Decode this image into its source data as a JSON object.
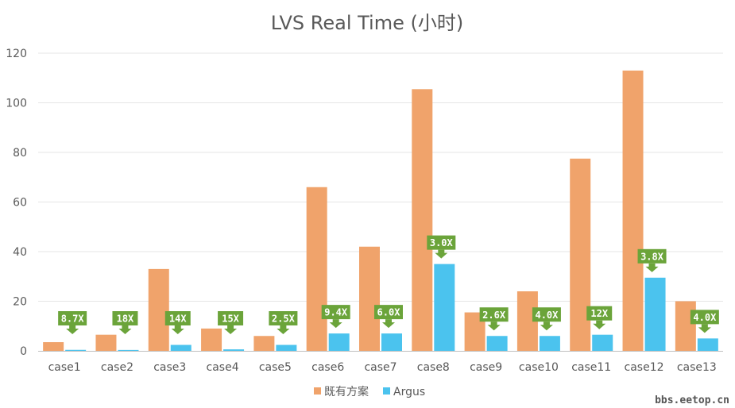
{
  "chart_data": {
    "type": "bar",
    "title": "LVS Real Time (小时)",
    "categories": [
      "case1",
      "case2",
      "case3",
      "case4",
      "case5",
      "case6",
      "case7",
      "case8",
      "case9",
      "case10",
      "case11",
      "case12",
      "case13"
    ],
    "series": [
      {
        "name": "既有方案",
        "color": "#F0A36B",
        "values": [
          3.5,
          6.5,
          33,
          9,
          6,
          66,
          42,
          105.5,
          15.5,
          24,
          77.5,
          113,
          20
        ]
      },
      {
        "name": "Argus",
        "color": "#4BC3EE",
        "values": [
          0.4,
          0.36,
          2.4,
          0.6,
          2.4,
          7,
          7,
          35,
          6,
          6,
          6.5,
          29.5,
          5
        ]
      }
    ],
    "annotations": [
      "8.7X",
      "18X",
      "14X",
      "15X",
      "2.5X",
      "9.4X",
      "6.0X",
      "3.0X",
      "2.6X",
      "4.0X",
      "12X",
      "3.8X",
      "4.0X"
    ],
    "annotation_color": "#6BA43A",
    "ylim": [
      0,
      120
    ],
    "yticks": [
      "0",
      "20",
      "40",
      "60",
      "80",
      "100",
      "120"
    ],
    "grid": true,
    "legend_position": "bottom"
  },
  "watermark": "bbs.eetop.cn"
}
